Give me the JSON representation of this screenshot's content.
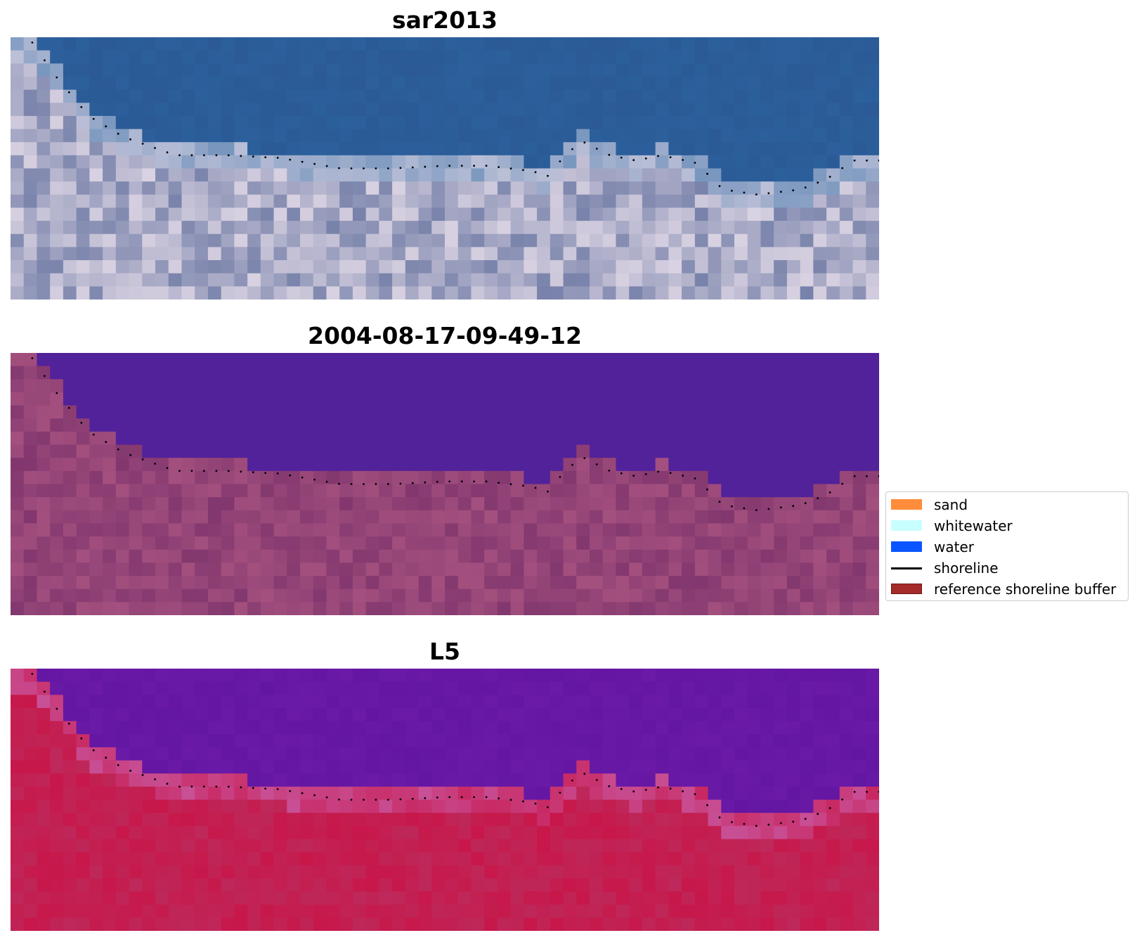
{
  "panels": [
    {
      "title": "sar2013"
    },
    {
      "title": "2004-08-17-09-49-12"
    },
    {
      "title": "L5"
    }
  ],
  "legend": {
    "items": [
      {
        "label": "sand",
        "color": "#ff8c3a",
        "kind": "patch"
      },
      {
        "label": "whitewater",
        "color": "#c8ffff",
        "kind": "patch"
      },
      {
        "label": "water",
        "color": "#0a55ff",
        "kind": "patch"
      },
      {
        "label": "shoreline",
        "color": "#000000",
        "kind": "line"
      },
      {
        "label": "reference shoreline buffer",
        "color": "#a52a2a",
        "kind": "patch"
      }
    ]
  },
  "colors": {
    "shoreline_dots": "#000000",
    "classified_water": "#52229a",
    "rgb_water": "#2b5a96",
    "rgb_land": "#d9d2e2",
    "classified_land": "#a4507f",
    "mndwi_water": "#6a1aa6",
    "mndwi_land": "#c8174a"
  }
}
